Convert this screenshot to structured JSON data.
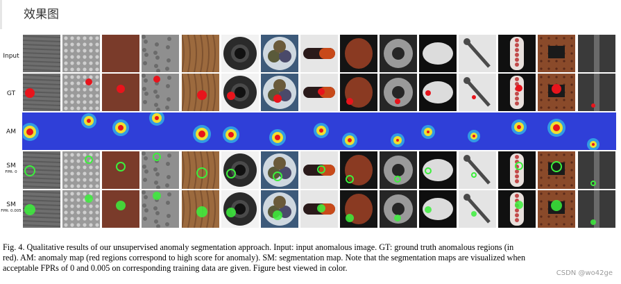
{
  "page": {
    "heading": "效果图",
    "watermark": "CSDN @wo42ge"
  },
  "figure": {
    "rows": [
      {
        "label": "Input",
        "sublabel": ""
      },
      {
        "label": "GT",
        "sublabel": ""
      },
      {
        "label": "AM",
        "sublabel": ""
      },
      {
        "label": "SM",
        "sublabel": "FPR: 0"
      },
      {
        "label": "SM",
        "sublabel": "FPR: 0.005"
      }
    ],
    "columns": [
      "carpet",
      "grid",
      "leather",
      "tile",
      "wood",
      "bottle",
      "cable",
      "capsule",
      "hazelnut",
      "metal_nut",
      "pill",
      "screw",
      "toothbrush",
      "transistor",
      "zipper"
    ],
    "colors": {
      "ground_truth": "#e8141c",
      "segmentation": "#3cf03c",
      "anomaly_map_base": "#2f3fd8"
    }
  },
  "caption": {
    "lines": [
      "Fig. 4.   Qualitative results of our unsupervised anomaly segmentation approach. Input: input anomalous image. GT: ground truth anomalous regions (in",
      "red). AM: anomaly map (red regions correspond to high score for anomaly). SM: segmentation map. Note that the segmentation maps are visualized when",
      "acceptable FPRs of 0 and 0.005 on corresponding training data are given. Figure best viewed in color."
    ]
  }
}
